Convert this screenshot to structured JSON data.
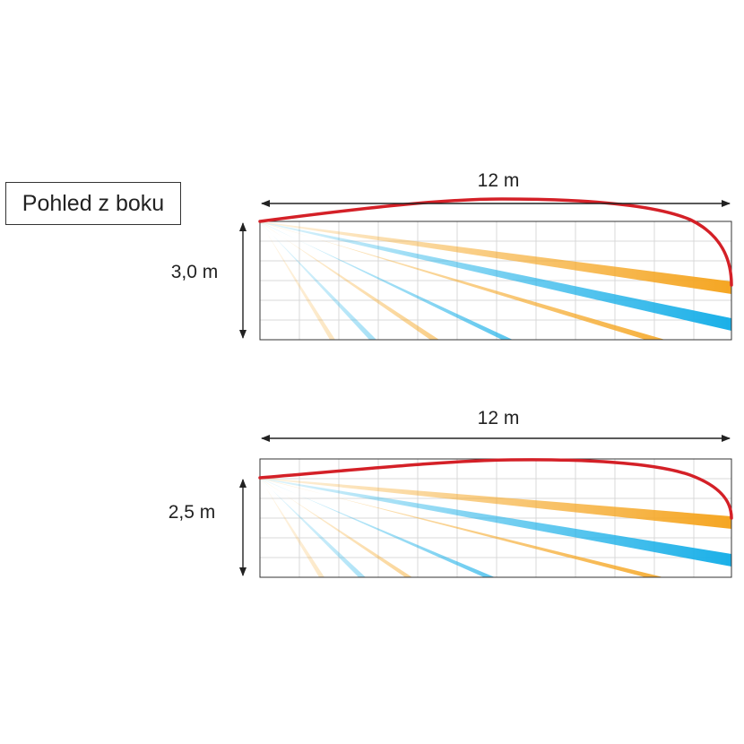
{
  "title": "Pohled z boku",
  "panels": [
    {
      "width_label": "12 m",
      "height_label": "3,0 m",
      "zone_color": "#d42027"
    },
    {
      "width_label": "12 m",
      "height_label": "2,5 m",
      "zone_color": "#d42027"
    }
  ],
  "colors": {
    "orange_beam": "#f5a623",
    "blue_beam": "#1bb0e8",
    "grid": "#d9d9d9",
    "frame": "#333333",
    "zone_curve": "#d42027"
  }
}
